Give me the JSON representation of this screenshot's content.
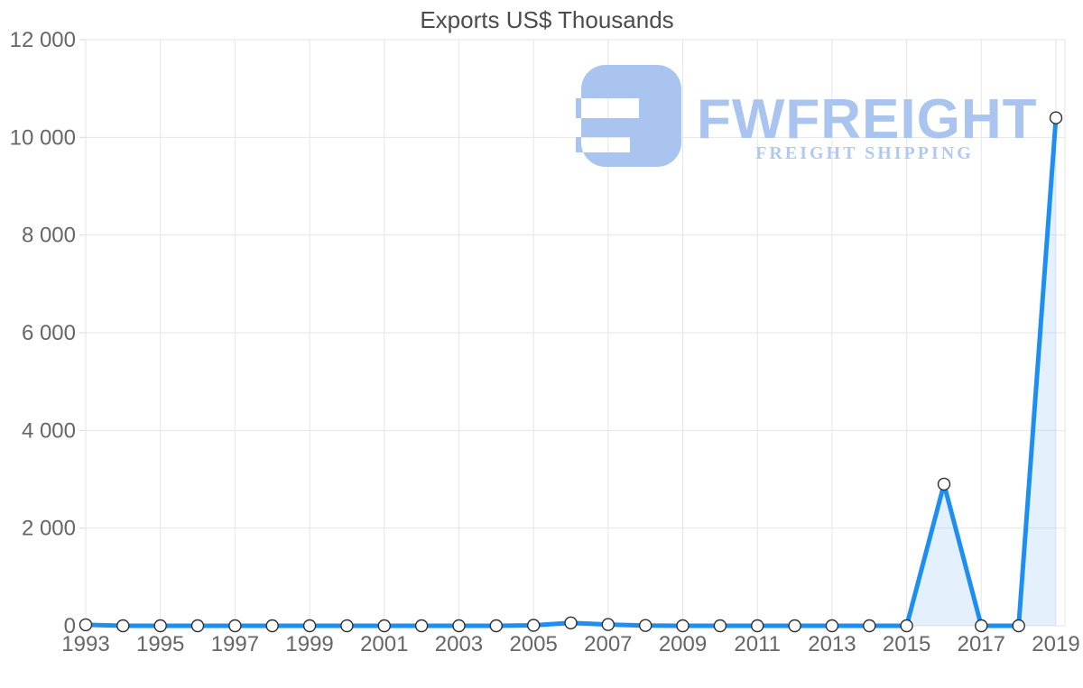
{
  "title": "Exports US$ Thousands",
  "watermark": {
    "brand": "FWFREIGHT",
    "tagline": "FREIGHT SHIPPING"
  },
  "chart_data": {
    "type": "area",
    "series_name": "Exports US$ Thousands",
    "title": "Exports US$ Thousands",
    "xlabel": "",
    "ylabel": "",
    "x": [
      1993,
      1994,
      1995,
      1996,
      1997,
      1998,
      1999,
      2000,
      2001,
      2002,
      2003,
      2004,
      2005,
      2006,
      2007,
      2008,
      2009,
      2010,
      2011,
      2012,
      2013,
      2014,
      2015,
      2016,
      2017,
      2018,
      2019
    ],
    "values": [
      20,
      0,
      0,
      0,
      0,
      0,
      0,
      0,
      0,
      0,
      0,
      0,
      10,
      60,
      25,
      5,
      0,
      0,
      0,
      0,
      0,
      0,
      0,
      2900,
      0,
      0,
      10400
    ],
    "xlim": [
      1993,
      2019
    ],
    "ylim": [
      0,
      12000
    ],
    "ytick_interval": 2000,
    "ytick_values": [
      0,
      2000,
      4000,
      6000,
      8000,
      10000,
      12000
    ],
    "ytick_labels": [
      "0",
      "2 000",
      "4 000",
      "6 000",
      "8 000",
      "10 000",
      "12 000"
    ],
    "xtick_years": [
      1993,
      1995,
      1997,
      1999,
      2001,
      2003,
      2005,
      2007,
      2009,
      2011,
      2013,
      2015,
      2017,
      2019
    ],
    "xtick_labels": [
      "1993",
      "1995",
      "1997",
      "1999",
      "2001",
      "2003",
      "2005",
      "2007",
      "2009",
      "2011",
      "2013",
      "2015",
      "2017",
      "2019"
    ],
    "grid": true,
    "legend_position": "none",
    "markers": true
  },
  "colors": {
    "line": "#1e8ff2",
    "area_fill": "rgba(30,143,242,0.12)",
    "grid": "#e6e6e6",
    "axis": "#d9d9d9",
    "tick_text": "#666666",
    "title_text": "#4c4c4c",
    "marker_fill": "#ffffff",
    "marker_stroke": "#2e2e2e",
    "watermark": "#a9c4ef",
    "watermark_tagline": "#b0c9f4"
  }
}
